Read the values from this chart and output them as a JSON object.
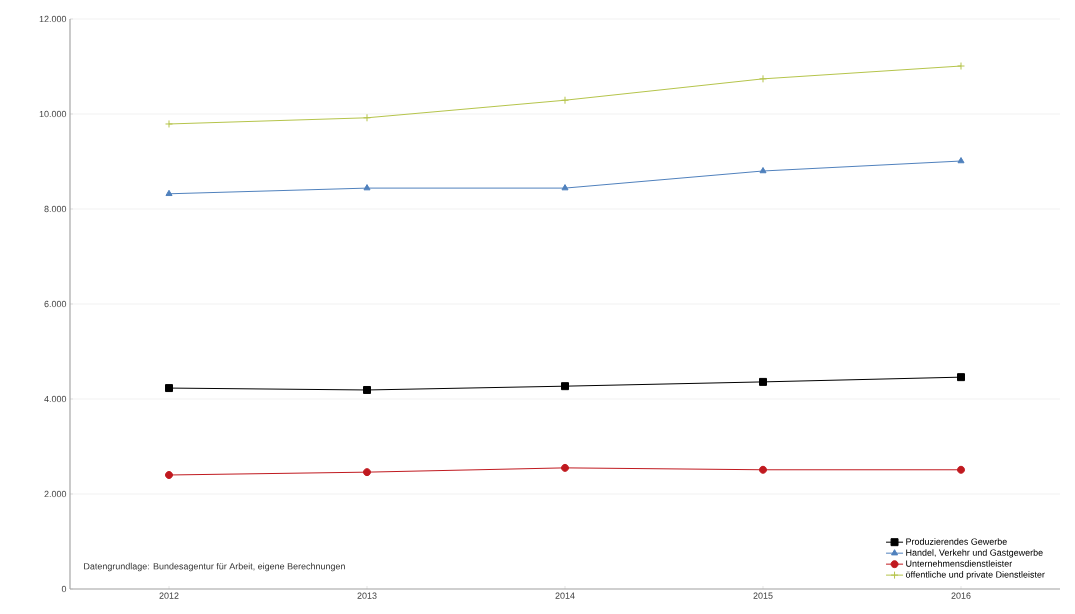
{
  "chart_data": {
    "type": "line",
    "categories": [
      "2012",
      "2013",
      "2014",
      "2015",
      "2016"
    ],
    "series": [
      {
        "name": "Produzierendes Gewerbe",
        "color": "#000000",
        "marker": "square",
        "values": [
          4230,
          4190,
          4270,
          4360,
          4460
        ]
      },
      {
        "name": "Handel, Verkehr und Gastgewerbe",
        "color": "#4f81bd",
        "marker": "triangle",
        "values": [
          8320,
          8440,
          8440,
          8800,
          9010
        ]
      },
      {
        "name": "Unternehmensdienstleister",
        "color": "#c0191f",
        "marker": "circle",
        "values": [
          2400,
          2460,
          2550,
          2510,
          2510
        ]
      },
      {
        "name": "öffentliche und private Dienstleister",
        "color": "#b5c44a",
        "marker": "cross",
        "values": [
          9790,
          9920,
          10290,
          10740,
          11010
        ]
      }
    ],
    "ylim": [
      0,
      12000
    ],
    "yticks": [
      {
        "value": 0,
        "label": "0"
      },
      {
        "value": 2000,
        "label": "2.000"
      },
      {
        "value": 4000,
        "label": "4.000"
      },
      {
        "value": 6000,
        "label": "6.000"
      },
      {
        "value": 8000,
        "label": "8.000"
      },
      {
        "value": 10000,
        "label": "10.000"
      },
      {
        "value": 12000,
        "label": "12.000"
      }
    ],
    "grid": "y",
    "legend": "bottom right",
    "line_style": "solid",
    "annotations": [
      "Datengrundlage: Bundesagentur für Arbeit, eigene Berechnungen"
    ]
  }
}
